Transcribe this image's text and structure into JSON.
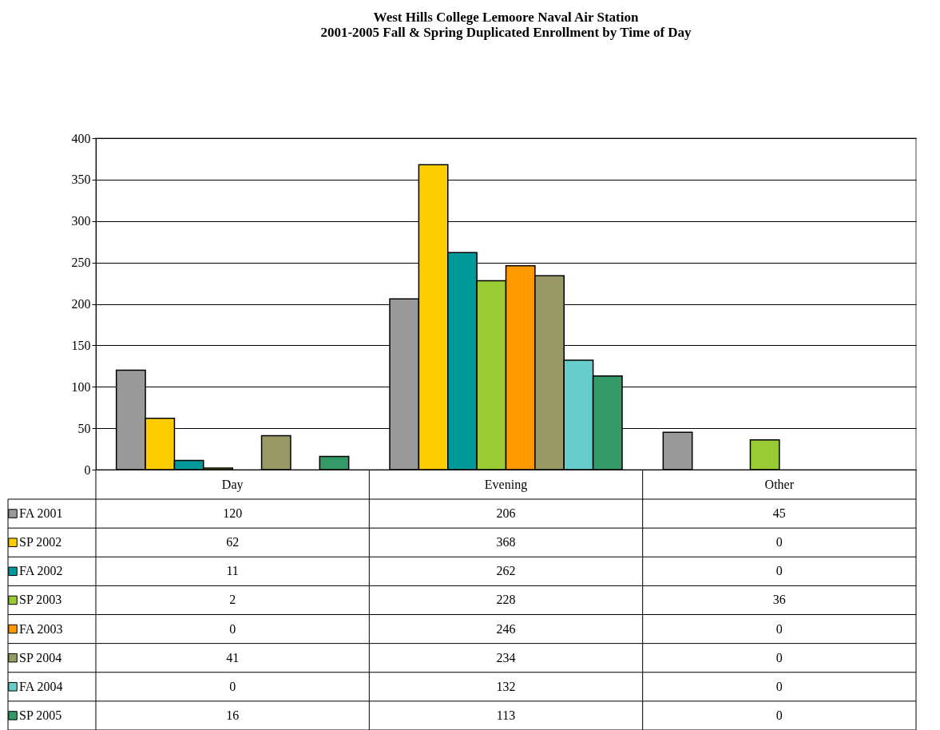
{
  "chart_data": {
    "type": "bar",
    "title": [
      "West Hills College Lemoore Naval Air Station",
      "2001-2005 Fall & Spring Duplicated Enrollment by Time of Day"
    ],
    "categories": [
      "Day",
      "Evening",
      "Other"
    ],
    "series": [
      {
        "name": "FA 2001",
        "color": "#999999",
        "values": [
          120,
          206,
          45
        ]
      },
      {
        "name": "SP 2002",
        "color": "#ffcc00",
        "values": [
          62,
          368,
          0
        ]
      },
      {
        "name": "FA 2002",
        "color": "#009999",
        "values": [
          11,
          262,
          0
        ]
      },
      {
        "name": "SP 2003",
        "color": "#99cc33",
        "values": [
          2,
          228,
          36
        ]
      },
      {
        "name": "FA 2003",
        "color": "#ff9900",
        "values": [
          0,
          246,
          0
        ]
      },
      {
        "name": "SP 2004",
        "color": "#999966",
        "values": [
          41,
          234,
          0
        ]
      },
      {
        "name": "FA 2004",
        "color": "#66cccc",
        "values": [
          0,
          132,
          0
        ]
      },
      {
        "name": "SP 2005",
        "color": "#339966",
        "values": [
          16,
          113,
          0
        ]
      }
    ],
    "ylim": [
      0,
      400
    ],
    "yticks": [
      0,
      50,
      100,
      150,
      200,
      250,
      300,
      350,
      400
    ],
    "grid": "y",
    "data_labels": true,
    "legend": "bottom"
  }
}
